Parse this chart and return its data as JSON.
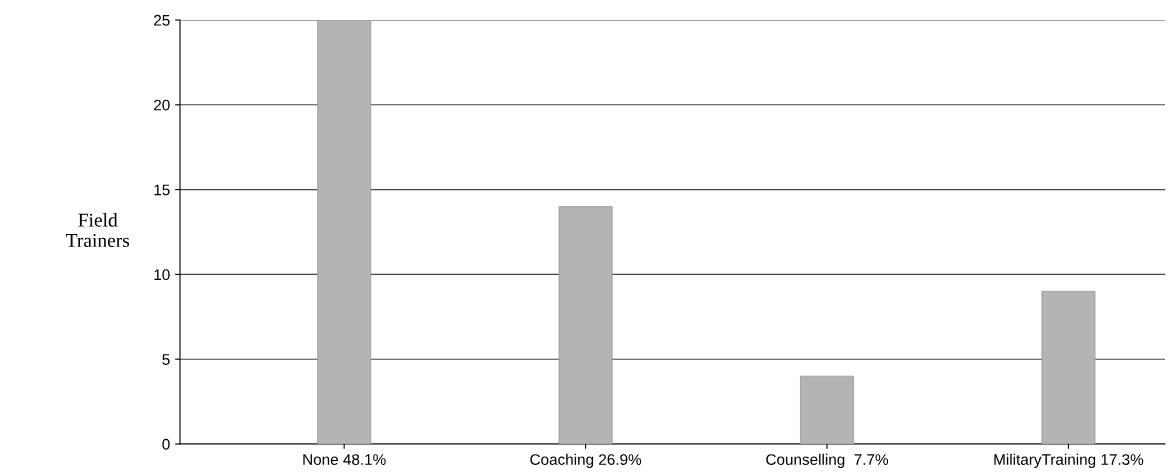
{
  "chart_data": {
    "type": "bar",
    "categories": [
      "None 48.1%",
      "Coaching 26.9%",
      "Counselling  7.7%",
      "MilitaryTraining 17.3%"
    ],
    "values": [
      25,
      14,
      4,
      9
    ],
    "color": "#b4b4b4",
    "ylabel": "Field\nTrainers",
    "ylim": [
      0,
      25
    ],
    "yticks": [
      0,
      5,
      10,
      15,
      20,
      25
    ],
    "grid": "y",
    "legend": false
  }
}
